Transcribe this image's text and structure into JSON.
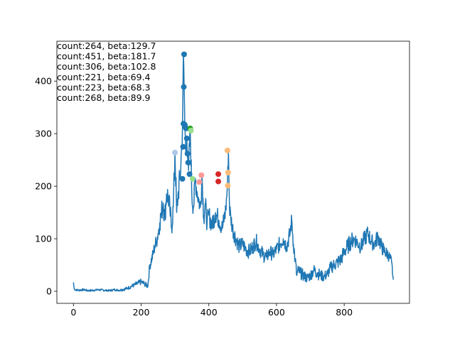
{
  "chart_data": {
    "type": "line",
    "title": "",
    "xlabel": "",
    "ylabel": "",
    "xlim": [
      -49,
      993
    ],
    "ylim": [
      -23,
      476
    ],
    "xticks": [
      0,
      200,
      400,
      600,
      800
    ],
    "yticks": [
      0,
      100,
      200,
      300,
      400
    ],
    "grid": false,
    "legend": "none",
    "line_color": "#1f77b4",
    "series_anchor_points": {
      "x": [
        0,
        2,
        5,
        15,
        30,
        45,
        60,
        75,
        90,
        105,
        120,
        135,
        150,
        160,
        170,
        180,
        190,
        200,
        210,
        220,
        225,
        235,
        240,
        245,
        250,
        255,
        260,
        265,
        270,
        275,
        280,
        285,
        290,
        295,
        300,
        305,
        310,
        315,
        320,
        322,
        325,
        327,
        329,
        332,
        335,
        338,
        340,
        345,
        350,
        355,
        360,
        365,
        370,
        375,
        380,
        385,
        390,
        395,
        400,
        410,
        420,
        430,
        440,
        450,
        455,
        458,
        461,
        465,
        470,
        480,
        490,
        500,
        510,
        520,
        530,
        540,
        550,
        560,
        570,
        580,
        590,
        600,
        610,
        620,
        630,
        640,
        645,
        650,
        655,
        660,
        665,
        670,
        680,
        690,
        700,
        710,
        720,
        730,
        740,
        750,
        760,
        770,
        780,
        790,
        800,
        810,
        820,
        830,
        840,
        850,
        860,
        870,
        880,
        890,
        900,
        910,
        920,
        930,
        940,
        945
      ],
      "y": [
        17,
        5,
        3,
        2,
        3,
        1,
        2,
        3,
        2,
        1,
        3,
        2,
        4,
        6,
        9,
        12,
        15,
        18,
        14,
        10,
        48,
        70,
        85,
        95,
        110,
        130,
        150,
        168,
        140,
        185,
        180,
        155,
        120,
        160,
        264,
        150,
        190,
        215,
        275,
        310,
        451,
        390,
        320,
        260,
        290,
        250,
        230,
        310,
        180,
        160,
        215,
        190,
        175,
        160,
        220,
        140,
        165,
        130,
        145,
        125,
        150,
        135,
        120,
        155,
        201,
        268,
        160,
        140,
        120,
        100,
        85,
        90,
        80,
        75,
        85,
        95,
        80,
        70,
        65,
        75,
        70,
        80,
        90,
        100,
        85,
        110,
        137,
        90,
        60,
        30,
        40,
        35,
        30,
        25,
        30,
        40,
        35,
        30,
        28,
        32,
        45,
        50,
        55,
        60,
        75,
        85,
        95,
        100,
        92,
        85,
        100,
        110,
        95,
        90,
        105,
        85,
        75,
        70,
        55,
        22
      ],
      "jitter": [
        2,
        2,
        2,
        2,
        2,
        2,
        2,
        2,
        2,
        2,
        2,
        2,
        3,
        3,
        4,
        4,
        5,
        6,
        5,
        5,
        10,
        12,
        14,
        15,
        18,
        20,
        22,
        24,
        22,
        25,
        25,
        22,
        20,
        22,
        30,
        22,
        25,
        28,
        30,
        30,
        20,
        20,
        25,
        25,
        25,
        25,
        22,
        25,
        22,
        22,
        25,
        22,
        22,
        20,
        25,
        20,
        20,
        20,
        20,
        18,
        20,
        18,
        18,
        20,
        20,
        20,
        20,
        18,
        18,
        16,
        15,
        15,
        14,
        14,
        15,
        15,
        14,
        14,
        13,
        14,
        13,
        14,
        15,
        16,
        14,
        16,
        16,
        16,
        15,
        12,
        12,
        12,
        11,
        10,
        11,
        12,
        12,
        11,
        10,
        11,
        12,
        13,
        14,
        14,
        15,
        16,
        16,
        16,
        15,
        15,
        16,
        16,
        15,
        15,
        16,
        15,
        13,
        12,
        11,
        8
      ]
    },
    "peak_markers": [
      {
        "x": 300,
        "y": 264,
        "color": "#aec7e8"
      },
      {
        "x": 322,
        "y": 214,
        "color": "#1f77b4"
      },
      {
        "x": 324,
        "y": 275,
        "color": "#1f77b4"
      },
      {
        "x": 325,
        "y": 319,
        "color": "#1f77b4"
      },
      {
        "x": 326,
        "y": 389,
        "color": "#1f77b4"
      },
      {
        "x": 327,
        "y": 451,
        "color": "#1f77b4"
      },
      {
        "x": 329,
        "y": 317,
        "color": "#1f77b4"
      },
      {
        "x": 331,
        "y": 312,
        "color": "#1f77b4"
      },
      {
        "x": 333,
        "y": 310,
        "color": "#1f77b4"
      },
      {
        "x": 335,
        "y": 291,
        "color": "#1f77b4"
      },
      {
        "x": 337,
        "y": 262,
        "color": "#1f77b4"
      },
      {
        "x": 339,
        "y": 245,
        "color": "#1f77b4"
      },
      {
        "x": 343,
        "y": 223,
        "color": "#1f77b4"
      },
      {
        "x": 345,
        "y": 310,
        "color": "#2ca02c"
      },
      {
        "x": 347,
        "y": 306,
        "color": "#98df8a"
      },
      {
        "x": 352,
        "y": 214,
        "color": "#98df8a"
      },
      {
        "x": 378,
        "y": 221,
        "color": "#ff9896"
      },
      {
        "x": 372,
        "y": 208,
        "color": "#ff9896"
      },
      {
        "x": 428,
        "y": 223,
        "color": "#d62728"
      },
      {
        "x": 428,
        "y": 209,
        "color": "#d62728"
      },
      {
        "x": 455,
        "y": 268,
        "color": "#ffbb78"
      },
      {
        "x": 457,
        "y": 226,
        "color": "#ffbb78"
      },
      {
        "x": 456,
        "y": 201,
        "color": "#ffbb78"
      }
    ],
    "annotations": [
      "count:264, beta:129.7",
      "count:451, beta:181.7",
      "count:306, beta:102.8",
      "count:221, beta:69.4",
      "count:223, beta:68.3",
      "count:268, beta:89.9"
    ]
  }
}
